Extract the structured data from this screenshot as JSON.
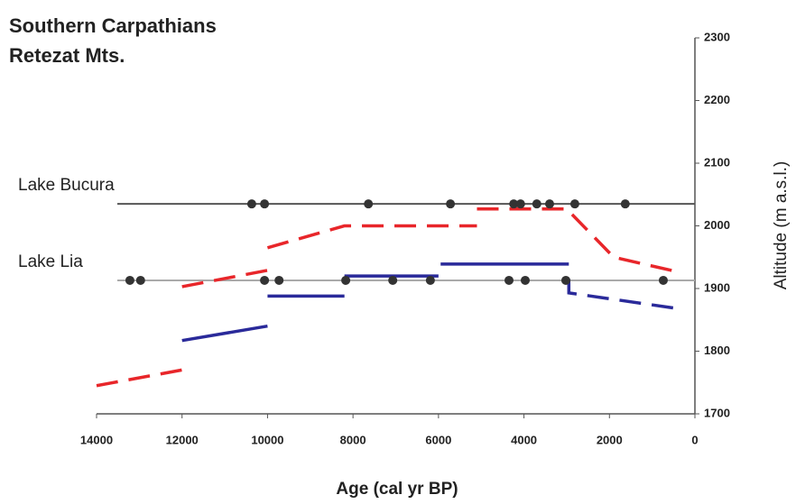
{
  "chart_data": {
    "type": "line",
    "title": [
      "Southern Carpathians",
      "Retezat Mts."
    ],
    "x_label": "Age (cal yr BP)",
    "y_label": "Altitude (m a.s.l.)",
    "xlim": [
      14000,
      0
    ],
    "ylim": [
      1700,
      2300
    ],
    "xticks": [
      14000,
      12000,
      10000,
      8000,
      6000,
      4000,
      2000,
      0
    ],
    "yticks": [
      1700,
      1800,
      1900,
      2000,
      2100,
      2200,
      2300
    ],
    "reference_lines": [
      {
        "label": "Lake Bucura",
        "value": 2035,
        "color": "#555555"
      },
      {
        "label": "Lake Lia",
        "value": 1913,
        "color": "#aaaaaa"
      }
    ],
    "series": [
      {
        "type": "line",
        "color": "#e8262a",
        "dash": true,
        "x": [
          14000,
          12000,
          12000,
          12000,
          10000,
          10000,
          10000,
          8200,
          5100,
          5100,
          5100,
          3000,
          1900,
          300
        ],
        "values": [
          1745,
          1770,
          null,
          1903,
          1929,
          null,
          1965,
          2000,
          2000,
          null,
          2027,
          2027,
          1950,
          1925
        ]
      },
      {
        "type": "line",
        "color": "#2a2a9a",
        "dash": false,
        "x": [
          12000,
          10000,
          10000,
          10000,
          8200,
          8200,
          8200,
          6000,
          6000,
          5950,
          2950
        ],
        "values": [
          1817,
          1840,
          null,
          1888,
          1888,
          null,
          1920,
          1920,
          null,
          1939,
          1939
        ]
      },
      {
        "type": "line",
        "color": "#2a2a9a",
        "dash": true,
        "x": [
          2950,
          2950,
          300
        ],
        "values": [
          1915,
          1893,
          1867
        ]
      },
      {
        "type": "scatter",
        "color": "#333333",
        "x": [
          10370,
          10070,
          7640,
          5720,
          4240,
          4080,
          3700,
          3400,
          2810,
          1630
        ],
        "values": [
          2035,
          2035,
          2035,
          2035,
          2035,
          2035,
          2035,
          2035,
          2035,
          2035
        ]
      },
      {
        "type": "scatter",
        "color": "#333333",
        "x": [
          13220,
          12970,
          10070,
          9730,
          8170,
          7070,
          6190,
          4350,
          3970,
          3020,
          740
        ],
        "values": [
          1913,
          1913,
          1913,
          1913,
          1913,
          1913,
          1913,
          1913,
          1913,
          1913,
          1913
        ]
      }
    ]
  }
}
